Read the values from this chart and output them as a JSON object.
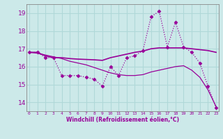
{
  "xlabel": "Windchill (Refroidissement éolien,°C)",
  "x_ticks": [
    0,
    1,
    2,
    3,
    4,
    5,
    6,
    7,
    8,
    9,
    10,
    11,
    12,
    13,
    14,
    15,
    16,
    17,
    18,
    19,
    20,
    21,
    22,
    23
  ],
  "ylim": [
    13.5,
    19.5
  ],
  "yticks": [
    14,
    15,
    16,
    17,
    18,
    19
  ],
  "xlim": [
    -0.3,
    23.3
  ],
  "background_color": "#cce9e9",
  "line_color": "#990099",
  "grid_color": "#b0d8d8",
  "series": [
    {
      "x": [
        0,
        1,
        2,
        3,
        4,
        5,
        6,
        7,
        8,
        9,
        10,
        11,
        12,
        13,
        14,
        15,
        16,
        17,
        18,
        19,
        20,
        21,
        22,
        23
      ],
      "y": [
        16.8,
        16.8,
        16.5,
        16.5,
        15.5,
        15.5,
        15.5,
        15.4,
        15.3,
        14.9,
        16.0,
        15.5,
        16.5,
        16.6,
        16.9,
        18.8,
        19.1,
        17.1,
        18.5,
        17.1,
        16.8,
        16.2,
        14.9,
        13.7
      ],
      "marker": "D",
      "markersize": 2.5,
      "linewidth": 0.9,
      "linestyle": "dotted"
    },
    {
      "x": [
        0,
        1,
        2,
        3,
        4,
        5,
        6,
        7,
        8,
        9,
        10,
        11,
        12,
        13,
        14,
        15,
        16,
        17,
        18,
        19,
        20,
        21,
        22,
        23
      ],
      "y": [
        16.8,
        16.8,
        16.6,
        16.5,
        16.5,
        16.45,
        16.42,
        16.4,
        16.38,
        16.35,
        16.5,
        16.6,
        16.7,
        16.8,
        16.87,
        17.0,
        17.05,
        17.05,
        17.05,
        17.05,
        17.0,
        16.95,
        16.9,
        16.8
      ],
      "marker": null,
      "markersize": 0,
      "linewidth": 1.2,
      "linestyle": "solid"
    },
    {
      "x": [
        0,
        1,
        2,
        3,
        4,
        5,
        6,
        7,
        8,
        9,
        10,
        11,
        12,
        13,
        14,
        15,
        16,
        17,
        18,
        19,
        20,
        21,
        22,
        23
      ],
      "y": [
        16.8,
        16.75,
        16.65,
        16.55,
        16.45,
        16.3,
        16.2,
        16.1,
        15.95,
        15.8,
        15.65,
        15.55,
        15.5,
        15.5,
        15.55,
        15.7,
        15.8,
        15.9,
        16.0,
        16.05,
        15.8,
        15.4,
        14.7,
        13.75
      ],
      "marker": null,
      "markersize": 0,
      "linewidth": 0.9,
      "linestyle": "solid"
    }
  ]
}
